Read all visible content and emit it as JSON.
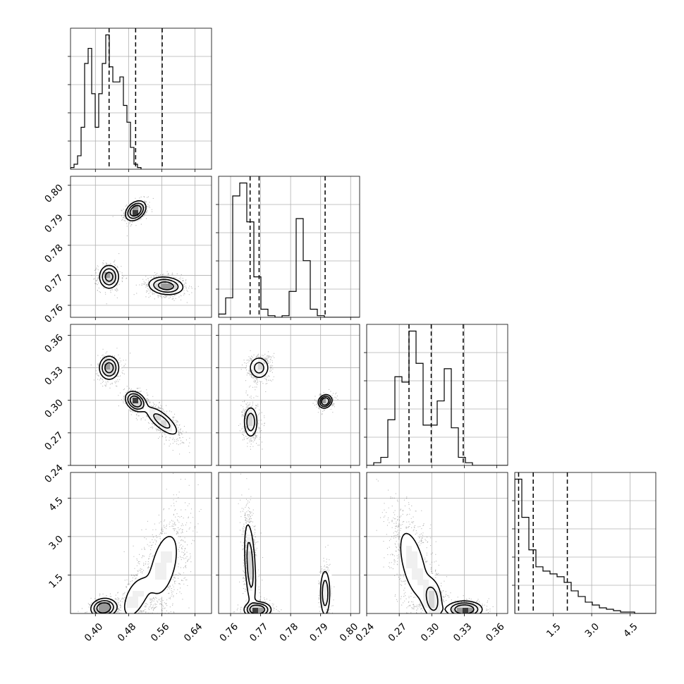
{
  "chart_data": {
    "type": "corner",
    "grid": true,
    "parameters": [
      {
        "range": [
          0.34,
          0.68
        ],
        "ticks": [
          0.4,
          0.48,
          0.56,
          0.64
        ],
        "tick_labels": [
          "0.40",
          "0.48",
          "0.56",
          "0.64"
        ],
        "quantiles": [
          0.433,
          0.497,
          0.561
        ]
      },
      {
        "range": [
          0.756,
          0.803
        ],
        "ticks": [
          0.76,
          0.77,
          0.78,
          0.79,
          0.8
        ],
        "tick_labels": [
          "0.76",
          "0.77",
          "0.78",
          "0.79",
          "0.80"
        ],
        "quantiles": [
          0.7665,
          0.7695,
          0.7915
        ]
      },
      {
        "range": [
          0.24,
          0.37
        ],
        "ticks": [
          0.24,
          0.27,
          0.3,
          0.33,
          0.36
        ],
        "tick_labels": [
          "0.24",
          "0.27",
          "0.30",
          "0.33",
          "0.36"
        ],
        "quantiles": [
          0.279,
          0.2995,
          0.329
        ]
      },
      {
        "range": [
          0.0,
          5.5
        ],
        "ticks": [
          1.5,
          3.0,
          4.5
        ],
        "tick_labels": [
          "1.5",
          "3.0",
          "4.5"
        ],
        "quantiles": [
          0.15,
          0.72,
          2.05
        ]
      }
    ],
    "histograms": [
      {
        "parameter": 0,
        "bin_start": 0.34,
        "bin_width": 0.0085,
        "counts": [
          1,
          3,
          8,
          25,
          63,
          72,
          45,
          25,
          45,
          63,
          80,
          61,
          52,
          52,
          55,
          38,
          28,
          13,
          3,
          1
        ]
      },
      {
        "parameter": 1,
        "bin_start": 0.756,
        "bin_width": 0.00235,
        "counts": [
          2,
          12,
          75,
          83,
          59,
          25,
          5,
          1,
          0,
          1,
          16,
          61,
          35,
          5,
          1,
          0,
          0,
          0,
          0,
          0
        ]
      },
      {
        "parameter": 2,
        "bin_start": 0.24,
        "bin_width": 0.0065,
        "counts": [
          0,
          1,
          3,
          17,
          33,
          31,
          50,
          38,
          15,
          15,
          24,
          36,
          14,
          3,
          1,
          0,
          0,
          0,
          0,
          0
        ]
      },
      {
        "parameter": 3,
        "bin_start": 0.0,
        "bin_width": 0.275,
        "counts": [
          95,
          68,
          45,
          33,
          30,
          28,
          26,
          22,
          16,
          12,
          8,
          6,
          4,
          3,
          2,
          1,
          1,
          0,
          0,
          0
        ]
      }
    ],
    "panels": [
      {
        "x": 0,
        "y": 1,
        "blobs": [
          {
            "cx": 0.497,
            "cy": 0.7915,
            "sx": 0.012,
            "sy": 0.0016,
            "rho": 0.35,
            "w": 1.0
          },
          {
            "cx": 0.433,
            "cy": 0.7695,
            "sx": 0.012,
            "sy": 0.002,
            "rho": 0.0,
            "w": 0.9
          },
          {
            "cx": 0.57,
            "cy": 0.7665,
            "sx": 0.021,
            "sy": 0.0015,
            "rho": -0.15,
            "w": 1.3
          }
        ]
      },
      {
        "x": 0,
        "y": 2,
        "blobs": [
          {
            "cx": 0.433,
            "cy": 0.33,
            "sx": 0.012,
            "sy": 0.0055,
            "rho": 0.0,
            "w": 0.95
          },
          {
            "cx": 0.497,
            "cy": 0.299,
            "sx": 0.012,
            "sy": 0.0045,
            "rho": -0.3,
            "w": 1.0
          },
          {
            "cx": 0.56,
            "cy": 0.281,
            "sx": 0.022,
            "sy": 0.0075,
            "rho": -0.75,
            "w": 1.35
          }
        ]
      },
      {
        "x": 0,
        "y": 3,
        "blobs": [
          {
            "cx": 0.42,
            "cy": 0.22,
            "sx": 0.015,
            "sy": 0.18,
            "rho": 0.1,
            "w": 0.7
          },
          {
            "cx": 0.495,
            "cy": 0.6,
            "sx": 0.02,
            "sy": 0.55,
            "rho": 0.5,
            "w": 0.7
          },
          {
            "cx": 0.565,
            "cy": 1.9,
            "sx": 0.026,
            "sy": 0.95,
            "rho": 0.45,
            "w": 1.5
          }
        ]
      },
      {
        "x": 1,
        "y": 2,
        "blobs": [
          {
            "cx": 0.7695,
            "cy": 0.33,
            "sx": 0.0018,
            "sy": 0.0055,
            "rho": 0.0,
            "w": 0.95
          },
          {
            "cx": 0.7667,
            "cy": 0.28,
            "sx": 0.0012,
            "sy": 0.0075,
            "rho": 0.0,
            "w": 1.05
          },
          {
            "cx": 0.7915,
            "cy": 0.299,
            "sx": 0.0011,
            "sy": 0.003,
            "rho": 0.15,
            "w": 0.75
          }
        ]
      },
      {
        "x": 1,
        "y": 3,
        "blobs": [
          {
            "cx": 0.769,
            "cy": 0.15,
            "sx": 0.0022,
            "sy": 0.15,
            "rho": 0.0,
            "w": 0.8
          },
          {
            "cx": 0.7665,
            "cy": 1.9,
            "sx": 0.0011,
            "sy": 0.95,
            "rho": -0.4,
            "w": 1.2
          },
          {
            "cx": 0.7915,
            "cy": 0.8,
            "sx": 0.0009,
            "sy": 0.5,
            "rho": 0.0,
            "w": 0.55
          }
        ]
      },
      {
        "x": 2,
        "y": 3,
        "blobs": [
          {
            "cx": 0.283,
            "cy": 1.9,
            "sx": 0.0095,
            "sy": 1.0,
            "rho": -0.55,
            "w": 1.5
          },
          {
            "cx": 0.301,
            "cy": 0.55,
            "sx": 0.005,
            "sy": 0.45,
            "rho": -0.2,
            "w": 0.6
          },
          {
            "cx": 0.33,
            "cy": 0.16,
            "sx": 0.008,
            "sy": 0.16,
            "rho": 0.0,
            "w": 0.8
          }
        ]
      }
    ]
  }
}
